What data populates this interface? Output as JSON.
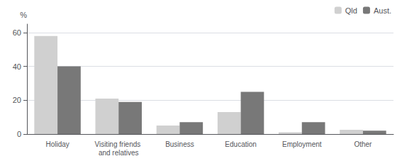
{
  "chart_data": {
    "type": "bar",
    "ylabel": "%",
    "categories": [
      "Holiday",
      "Visiting friends and relatives",
      "Business",
      "Education",
      "Employment",
      "Other"
    ],
    "series": [
      {
        "name": "Qld",
        "color": "#d0d0d0",
        "values": [
          58,
          21,
          5,
          13,
          1,
          2.5
        ]
      },
      {
        "name": "Aust.",
        "color": "#787878",
        "values": [
          40,
          19,
          7,
          25,
          7,
          2
        ]
      }
    ],
    "ylim": [
      0,
      65
    ],
    "yticks": [
      0,
      20,
      40,
      60
    ],
    "grid": true,
    "legend": "upper right"
  }
}
